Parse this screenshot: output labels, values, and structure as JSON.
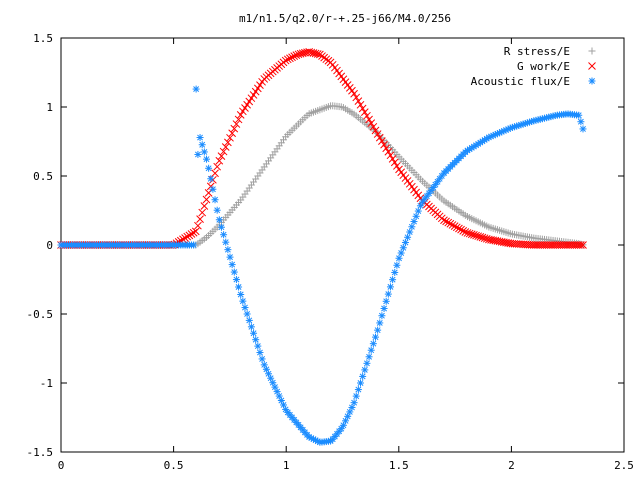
{
  "chart_data": {
    "type": "scatter",
    "title": "m1/n1.5/q2.0/r-+.25-j66/M4.0/256",
    "xlabel": "",
    "ylabel": "",
    "xlim": [
      0,
      2.5
    ],
    "ylim": [
      -1.5,
      1.5
    ],
    "x_ticks": [
      "0",
      "0.5",
      "1",
      "1.5",
      "2",
      "2.5"
    ],
    "y_ticks": [
      "1.5",
      "1",
      "0.5",
      "0",
      "-0.5",
      "-1",
      "-1.5"
    ],
    "x_tick_values": [
      0,
      0.5,
      1,
      1.5,
      2,
      2.5
    ],
    "y_tick_values": [
      1.5,
      1,
      0.5,
      0,
      -0.5,
      -1,
      -1.5
    ],
    "grid": false,
    "legend_position": "top-right",
    "series": [
      {
        "name": "R stress/E",
        "marker": "plus",
        "color": "#a0a0a0",
        "x": [
          0.0,
          0.1,
          0.2,
          0.3,
          0.4,
          0.5,
          0.6,
          0.65,
          0.7,
          0.8,
          0.9,
          1.0,
          1.1,
          1.2,
          1.25,
          1.3,
          1.4,
          1.5,
          1.6,
          1.7,
          1.8,
          1.9,
          2.0,
          2.1,
          2.2,
          2.3,
          2.32
        ],
        "y": [
          0.0,
          0.0,
          0.0,
          0.0,
          0.0,
          0.0,
          0.0,
          0.06,
          0.14,
          0.33,
          0.56,
          0.79,
          0.95,
          1.01,
          1.0,
          0.95,
          0.82,
          0.64,
          0.47,
          0.32,
          0.21,
          0.13,
          0.08,
          0.05,
          0.03,
          0.01,
          0.0
        ]
      },
      {
        "name": "G work/E",
        "marker": "cross",
        "color": "#ff0000",
        "x": [
          0.0,
          0.1,
          0.2,
          0.3,
          0.4,
          0.5,
          0.6,
          0.65,
          0.7,
          0.8,
          0.9,
          1.0,
          1.05,
          1.1,
          1.15,
          1.2,
          1.3,
          1.4,
          1.5,
          1.6,
          1.7,
          1.8,
          1.9,
          2.0,
          2.1,
          2.2,
          2.3,
          2.32
        ],
        "y": [
          0.0,
          0.0,
          0.0,
          0.0,
          0.0,
          0.0,
          0.1,
          0.35,
          0.6,
          0.95,
          1.2,
          1.34,
          1.38,
          1.4,
          1.38,
          1.32,
          1.1,
          0.82,
          0.55,
          0.33,
          0.18,
          0.09,
          0.04,
          0.01,
          0.0,
          0.0,
          0.0,
          0.0
        ]
      },
      {
        "name": "Acoustic flux/E",
        "marker": "star",
        "color": "#1a8cff",
        "x": [
          0.0,
          0.1,
          0.2,
          0.3,
          0.4,
          0.5,
          0.6,
          0.6,
          0.61,
          0.65,
          0.7,
          0.8,
          0.9,
          1.0,
          1.1,
          1.15,
          1.2,
          1.25,
          1.3,
          1.4,
          1.5,
          1.6,
          1.7,
          1.8,
          1.9,
          2.0,
          2.1,
          2.2,
          2.25,
          2.3,
          2.32
        ],
        "y": [
          0.0,
          0.0,
          0.0,
          0.0,
          0.0,
          0.0,
          0.0,
          1.13,
          0.82,
          0.6,
          0.2,
          -0.37,
          -0.86,
          -1.2,
          -1.39,
          -1.43,
          -1.42,
          -1.32,
          -1.15,
          -0.65,
          -0.1,
          0.3,
          0.52,
          0.68,
          0.78,
          0.85,
          0.9,
          0.94,
          0.95,
          0.94,
          0.83
        ]
      }
    ]
  }
}
